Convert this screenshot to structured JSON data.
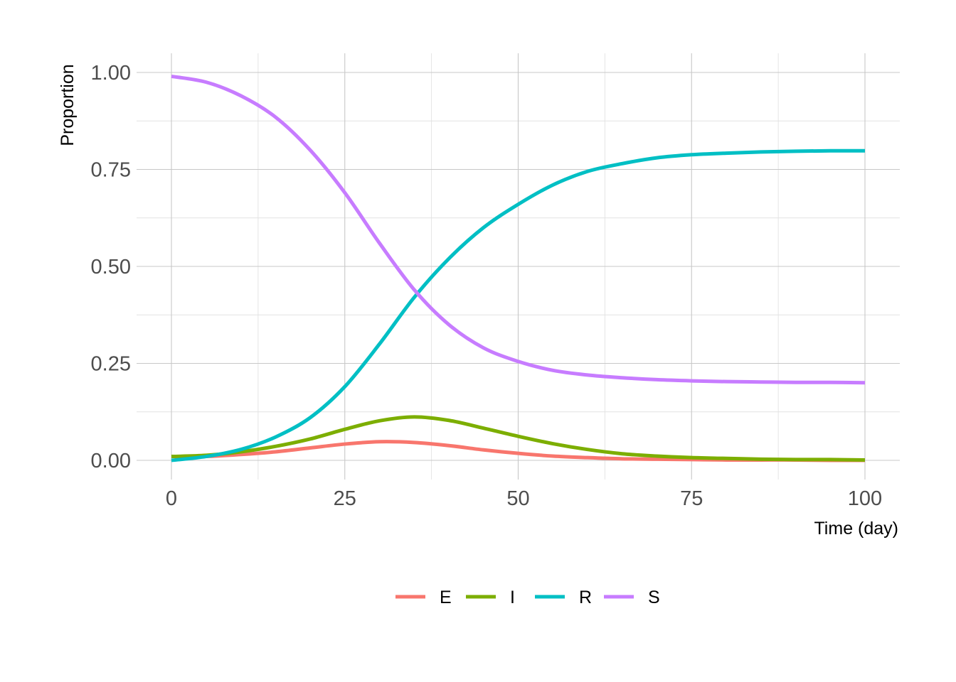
{
  "chart_data": {
    "type": "line",
    "title": "",
    "xlabel": "Time (day)",
    "ylabel": "Proportion",
    "xlim": [
      0,
      100
    ],
    "ylim": [
      0,
      1
    ],
    "x_ticks": [
      "0",
      "25",
      "50",
      "75",
      "100"
    ],
    "y_ticks": [
      "0.00",
      "0.25",
      "0.50",
      "0.75",
      "1.00"
    ],
    "grid": true,
    "legend_position": "bottom",
    "x": [
      0,
      5,
      10,
      15,
      20,
      25,
      30,
      35,
      40,
      45,
      50,
      55,
      60,
      65,
      70,
      75,
      80,
      85,
      90,
      95,
      100
    ],
    "series": [
      {
        "name": "E",
        "color": "#F8766D",
        "values": [
          0.01,
          0.01,
          0.015,
          0.022,
          0.032,
          0.042,
          0.048,
          0.046,
          0.038,
          0.027,
          0.018,
          0.011,
          0.007,
          0.004,
          0.003,
          0.002,
          0.001,
          0.001,
          0.001,
          0.0,
          0.0
        ]
      },
      {
        "name": "I",
        "color": "#7CAE00",
        "values": [
          0.01,
          0.013,
          0.022,
          0.036,
          0.055,
          0.08,
          0.102,
          0.112,
          0.103,
          0.083,
          0.062,
          0.043,
          0.028,
          0.017,
          0.011,
          0.007,
          0.005,
          0.003,
          0.002,
          0.002,
          0.001
        ]
      },
      {
        "name": "R",
        "color": "#00BFC4",
        "values": [
          0.0,
          0.01,
          0.028,
          0.06,
          0.11,
          0.19,
          0.3,
          0.42,
          0.52,
          0.6,
          0.66,
          0.71,
          0.745,
          0.765,
          0.78,
          0.788,
          0.792,
          0.795,
          0.797,
          0.798,
          0.798
        ]
      },
      {
        "name": "S",
        "color": "#C77CFF",
        "values": [
          0.99,
          0.975,
          0.94,
          0.885,
          0.8,
          0.69,
          0.56,
          0.44,
          0.35,
          0.29,
          0.255,
          0.232,
          0.22,
          0.213,
          0.208,
          0.205,
          0.203,
          0.202,
          0.201,
          0.201,
          0.2
        ]
      }
    ]
  }
}
